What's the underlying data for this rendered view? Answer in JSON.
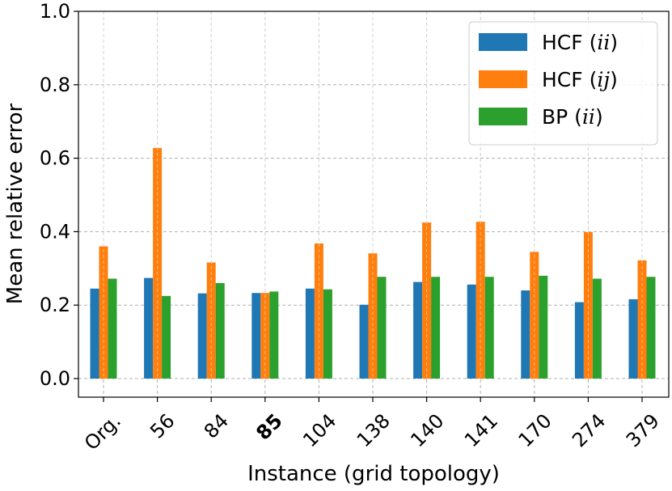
{
  "chart_data": {
    "type": "bar",
    "title": "",
    "xlabel": "Instance (grid topology)",
    "ylabel": "Mean relative error",
    "ylim": [
      0.0,
      1.0
    ],
    "yticks": [
      "0.0",
      "0.2",
      "0.4",
      "0.6",
      "0.8",
      "1.0"
    ],
    "grid": true,
    "legend_position": "top-right",
    "categories": [
      "Org.",
      "56",
      "84",
      "85",
      "104",
      "138",
      "140",
      "141",
      "170",
      "274",
      "379"
    ],
    "highlight_category": "85",
    "highlight_color": "#ff0000",
    "series": [
      {
        "name": "HCF (ii)",
        "legend_prefix": "HCF (",
        "legend_math": "ii",
        "legend_suffix": ")",
        "color": "#1f77b4",
        "values": [
          0.245,
          0.274,
          0.232,
          0.233,
          0.245,
          0.201,
          0.263,
          0.256,
          0.24,
          0.208,
          0.216
        ]
      },
      {
        "name": "HCF (ij)",
        "legend_prefix": "HCF (",
        "legend_math": "ij",
        "legend_suffix": ")",
        "color": "#ff7f0e",
        "values": [
          0.36,
          0.628,
          0.316,
          0.233,
          0.368,
          0.341,
          0.425,
          0.427,
          0.345,
          0.399,
          0.322
        ]
      },
      {
        "name": "BP (ii)",
        "legend_prefix": "BP (",
        "legend_math": "ii",
        "legend_suffix": ")",
        "color": "#2ca02c",
        "values": [
          0.272,
          0.225,
          0.26,
          0.237,
          0.243,
          0.277,
          0.277,
          0.277,
          0.28,
          0.272,
          0.277
        ]
      }
    ]
  }
}
